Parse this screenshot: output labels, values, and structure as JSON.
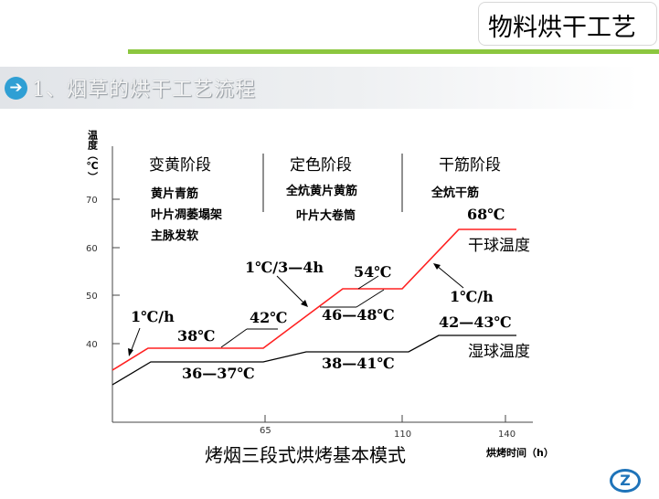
{
  "header": {
    "title": "物料烘干工艺"
  },
  "section": {
    "icon": "arrow-right-icon",
    "title": "1、烟草的烘干工艺流程"
  },
  "diagram": {
    "caption": "烤烟三段式烘烤基本模式",
    "y_axis_label": "温度（℃）",
    "x_axis_label": "烘烤时间（h）",
    "y_ticks": [
      "40",
      "50",
      "60",
      "70"
    ],
    "x_ticks": [
      "65",
      "110",
      "140"
    ],
    "stages": [
      {
        "name": "变黄阶段",
        "lines": [
          "黄片青筋",
          "叶片凋萎塌架",
          "主脉发软"
        ]
      },
      {
        "name": "定色阶段",
        "lines": [
          "全炕黄片黄筋",
          "叶片大卷筒"
        ]
      },
      {
        "name": "干筋阶段",
        "lines": [
          "全炕干筋"
        ]
      }
    ],
    "curves": {
      "dry_bulb": {
        "name": "干球温度",
        "color": "#ff2020"
      },
      "wet_bulb": {
        "name": "湿球温度",
        "color": "#000000"
      }
    },
    "annotations": {
      "rate_1": "1℃/h",
      "rate_2": "1℃/3—4h",
      "rate_3": "1℃/h",
      "dry_38": "38℃",
      "dry_42": "42℃",
      "dry_54": "54℃",
      "dry_68": "68℃",
      "wet_36_37": "36—37℃",
      "wet_38_41": "38—41℃",
      "wet_42_43": "42—43℃",
      "wet_46_48": "46—48℃"
    }
  },
  "logo": {
    "icon": "company-logo-icon",
    "letter": "Z"
  }
}
